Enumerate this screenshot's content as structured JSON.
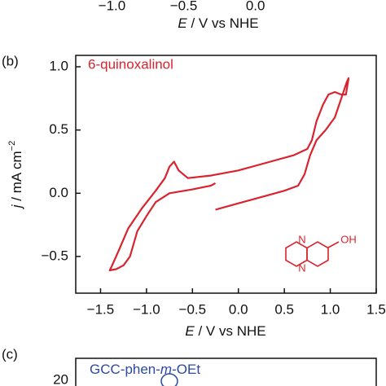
{
  "chart_data": [
    {
      "type": "line",
      "xlim": [
        -1.78,
        0.91
      ],
      "xticks": [
        {
          "value": -1.0,
          "label": "−1.0"
        },
        {
          "value": -0.5,
          "label": "−0.5"
        },
        {
          "value": 0.0,
          "label": "0.0"
        }
      ],
      "xlabel": {
        "symbol": "E",
        "text": " / V vs NHE"
      }
    },
    {
      "type": "line",
      "panel_label": "(b)",
      "annotation": "6-quinoxalinol",
      "molecule_labels": [
        "N",
        "N",
        "OH"
      ],
      "xlabel": {
        "symbol": "E",
        "text": " / V vs NHE"
      },
      "ylabel": {
        "symbol": "j",
        "text": " / mA cm",
        "sup": "−2"
      },
      "xlim": [
        -1.77,
        1.5
      ],
      "ylim": [
        -0.79,
        1.09
      ],
      "xticks": [
        {
          "value": -1.5,
          "label": "−1.5"
        },
        {
          "value": -1.0,
          "label": "−1.0"
        },
        {
          "value": -0.5,
          "label": "−0.5"
        },
        {
          "value": 0.0,
          "label": "0.0"
        },
        {
          "value": 0.5,
          "label": "0.5"
        },
        {
          "value": 1.0,
          "label": "1.0"
        },
        {
          "value": 1.5,
          "label": "1.5"
        }
      ],
      "yticks": [
        {
          "value": 1.0,
          "label": "1.0"
        },
        {
          "value": 0.5,
          "label": "0.5"
        },
        {
          "value": 0.0,
          "label": "0.0"
        },
        {
          "value": -0.5,
          "label": "−0.5"
        }
      ],
      "series": [
        {
          "color": "#d9232e",
          "x": [
            -0.25,
            0.0,
            0.3,
            0.5,
            0.65,
            0.72,
            0.78,
            0.85,
            0.95,
            1.05,
            1.12,
            1.18,
            1.2,
            1.17,
            1.12,
            1.05,
            0.98,
            0.92,
            0.85,
            0.8,
            0.75,
            0.6,
            0.3,
            0.0,
            -0.3,
            -0.55,
            -0.65,
            -0.7,
            -0.75,
            -0.8,
            -0.9,
            -1.05,
            -1.2,
            -1.3,
            -1.38,
            -1.4,
            -1.33,
            -1.25,
            -1.18,
            -1.1,
            -1.0,
            -0.9,
            -0.75,
            -0.5,
            -0.3,
            -0.25
          ],
          "values": [
            -0.13,
            -0.08,
            -0.02,
            0.02,
            0.06,
            0.15,
            0.3,
            0.42,
            0.5,
            0.6,
            0.75,
            0.88,
            0.91,
            0.78,
            0.78,
            0.8,
            0.78,
            0.7,
            0.57,
            0.42,
            0.35,
            0.3,
            0.24,
            0.18,
            0.14,
            0.12,
            0.18,
            0.25,
            0.21,
            0.12,
            0.02,
            -0.12,
            -0.28,
            -0.45,
            -0.58,
            -0.61,
            -0.6,
            -0.57,
            -0.5,
            -0.3,
            -0.18,
            -0.07,
            0.0,
            0.03,
            0.06,
            0.08
          ]
        }
      ]
    },
    {
      "type": "line",
      "panel_label": "(c)",
      "title_parts": [
        "GCC-phen-",
        "m",
        "-OEt"
      ],
      "yticks": [
        20
      ]
    }
  ]
}
